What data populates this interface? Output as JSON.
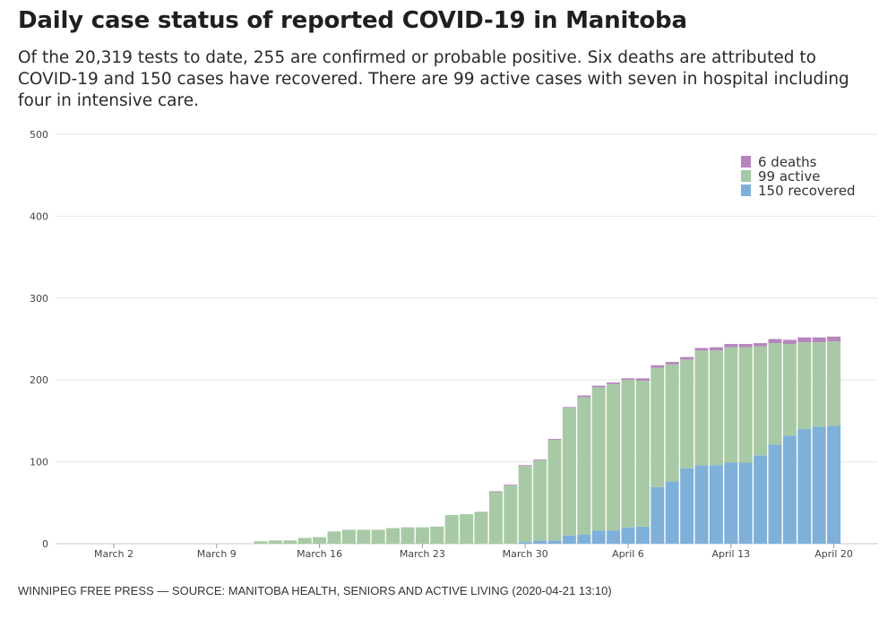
{
  "header": {
    "title": "Daily case status of reported COVID-19 in Manitoba",
    "subtitle": "Of the 20,319 tests to date, 255 are confirmed or probable positive. Six deaths are attributed to COVID-19 and 150 cases have recovered. There are 99 active cases with seven in hospital including four in intensive care."
  },
  "footer": {
    "source": "WINNIPEG FREE PRESS — SOURCE: MANITOBA HEALTH, SENIORS AND ACTIVE LIVING (2020-04-21 13:10)"
  },
  "chart_data": {
    "type": "bar",
    "stacked": true,
    "title": "Daily case status of reported COVID-19 in Manitoba",
    "xlabel": "",
    "ylabel": "",
    "ylim": [
      0,
      500
    ],
    "yticks": [
      0,
      100,
      200,
      300,
      400,
      500
    ],
    "grid": true,
    "legend_position": "top-right",
    "x_tick_labels": [
      {
        "date": "2020-03-02",
        "label": "March  2"
      },
      {
        "date": "2020-03-09",
        "label": "March  9"
      },
      {
        "date": "2020-03-16",
        "label": "March 16"
      },
      {
        "date": "2020-03-23",
        "label": "March 23"
      },
      {
        "date": "2020-03-30",
        "label": "March 30"
      },
      {
        "date": "2020-04-06",
        "label": "April  6"
      },
      {
        "date": "2020-04-13",
        "label": "April 13"
      },
      {
        "date": "2020-04-20",
        "label": "April 20"
      }
    ],
    "categories": [
      "2020-03-12",
      "2020-03-13",
      "2020-03-14",
      "2020-03-15",
      "2020-03-16",
      "2020-03-17",
      "2020-03-18",
      "2020-03-19",
      "2020-03-20",
      "2020-03-21",
      "2020-03-22",
      "2020-03-23",
      "2020-03-24",
      "2020-03-25",
      "2020-03-26",
      "2020-03-27",
      "2020-03-28",
      "2020-03-29",
      "2020-03-30",
      "2020-03-31",
      "2020-04-01",
      "2020-04-02",
      "2020-04-03",
      "2020-04-04",
      "2020-04-05",
      "2020-04-06",
      "2020-04-07",
      "2020-04-08",
      "2020-04-09",
      "2020-04-10",
      "2020-04-11",
      "2020-04-12",
      "2020-04-13",
      "2020-04-14",
      "2020-04-15",
      "2020-04-16",
      "2020-04-17",
      "2020-04-18",
      "2020-04-19",
      "2020-04-20"
    ],
    "series": [
      {
        "name": "150 recovered",
        "key": "recovered",
        "color": "#7fb0d9",
        "values": [
          0,
          0,
          0,
          0,
          0,
          0,
          0,
          0,
          0,
          0,
          0,
          0,
          0,
          0,
          0,
          0,
          0,
          0,
          2,
          4,
          4,
          10,
          11,
          16,
          16,
          20,
          21,
          69,
          76,
          92,
          96,
          96,
          99,
          99,
          108,
          121,
          132,
          140,
          143,
          144
        ]
      },
      {
        "name": "99 active",
        "key": "active",
        "color": "#a8c9a5",
        "values": [
          3,
          4,
          4,
          7,
          8,
          15,
          17,
          17,
          17,
          19,
          20,
          20,
          21,
          35,
          36,
          39,
          63,
          71,
          93,
          98,
          123,
          156,
          168,
          175,
          179,
          180,
          178,
          146,
          143,
          133,
          140,
          140,
          141,
          141,
          133,
          124,
          112,
          106,
          103,
          103
        ]
      },
      {
        "name": "6 deaths",
        "key": "deaths",
        "color": "#b586bb",
        "values": [
          0,
          0,
          0,
          0,
          0,
          0,
          0,
          0,
          0,
          0,
          0,
          0,
          0,
          0,
          0,
          0,
          1,
          1,
          1,
          1,
          1,
          1,
          2,
          2,
          2,
          2,
          3,
          3,
          3,
          3,
          3,
          4,
          4,
          4,
          4,
          5,
          5,
          6,
          6,
          6
        ]
      }
    ]
  }
}
